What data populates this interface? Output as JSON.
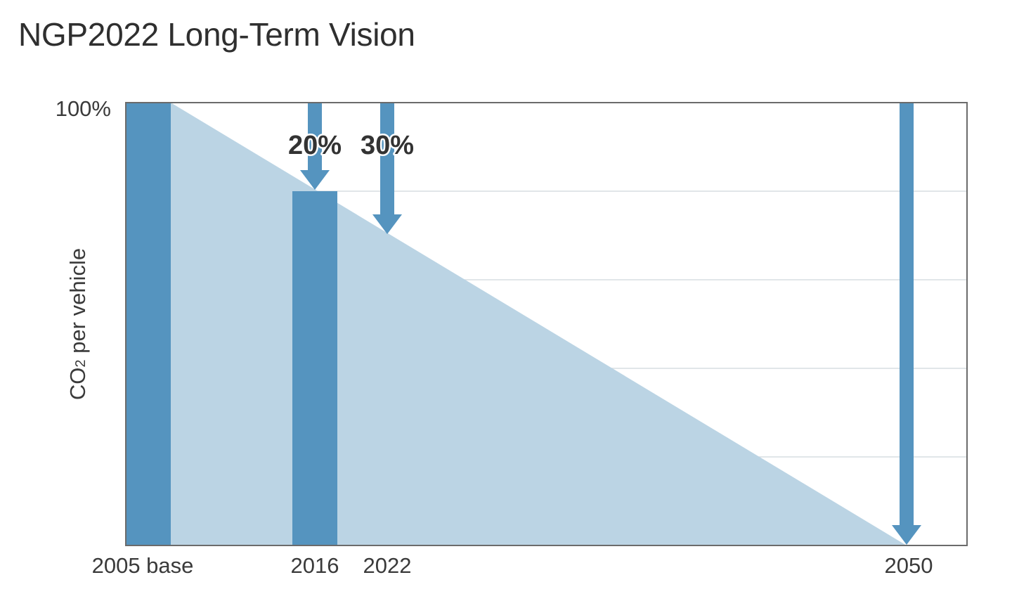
{
  "chart_data": {
    "type": "bar",
    "title": "NGP2022 Long-Term Vision",
    "ylabel": {
      "prefix": "CO",
      "subscript": "2",
      "suffix": " per vehicle"
    },
    "y_tick_label": "100%",
    "ylim": [
      0,
      100
    ],
    "grid": true,
    "categories": [
      "2005 base",
      "2016",
      "2022",
      "2050"
    ],
    "values": [
      100,
      80,
      70,
      0
    ],
    "bars_drawn": [
      "2005 base",
      "2016"
    ],
    "trend_area": {
      "from": "2005 base",
      "to": "2050",
      "start_value": 100,
      "end_value": 0
    },
    "reductions": [
      {
        "year": "2016",
        "label": "20%"
      },
      {
        "year": "2022",
        "label": "30%"
      },
      {
        "year": "2050",
        "label": ""
      }
    ],
    "colors": {
      "bar": "#5594bf",
      "area": "#bbd4e4",
      "grid": "#d7dde2",
      "frame": "#6b6b6b"
    }
  }
}
